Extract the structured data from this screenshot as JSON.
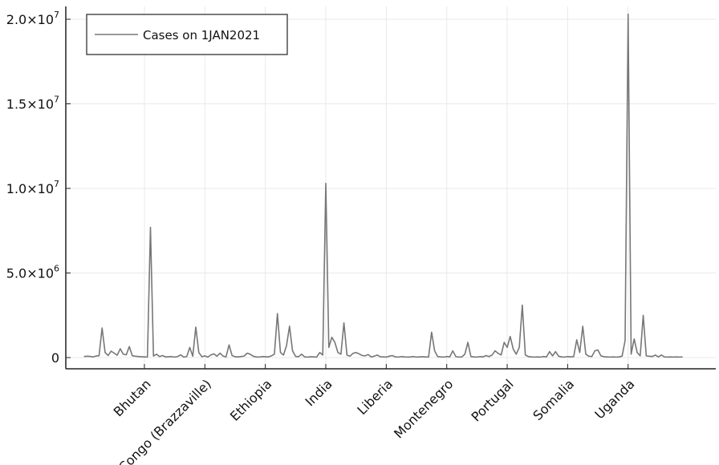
{
  "chart_data": {
    "type": "line",
    "title": "",
    "xlabel": "",
    "ylabel": "",
    "legend": {
      "position": "top-left",
      "entries": [
        "Cases on 1JAN2021"
      ]
    },
    "grid": true,
    "ylim": [
      0,
      20000000
    ],
    "y_ticks": [
      {
        "value": 0,
        "label": "0",
        "exp": ""
      },
      {
        "value": 5000000,
        "label": "5.0×10",
        "exp": "6"
      },
      {
        "value": 10000000,
        "label": "1.0×10",
        "exp": "7"
      },
      {
        "value": 15000000,
        "label": "1.5×10",
        "exp": "7"
      },
      {
        "value": 20000000,
        "label": "2.0×10",
        "exp": "7"
      }
    ],
    "xlim": [
      1,
      199
    ],
    "x_ticks": [
      {
        "index": 21,
        "label": "Bhutan"
      },
      {
        "index": 41,
        "label": "Congo (Brazzaville)"
      },
      {
        "index": 61,
        "label": "Ethiopia"
      },
      {
        "index": 81,
        "label": "India"
      },
      {
        "index": 101,
        "label": "Liberia"
      },
      {
        "index": 121,
        "label": "Montenegro"
      },
      {
        "index": 141,
        "label": "Portugal"
      },
      {
        "index": 161,
        "label": "Somalia"
      },
      {
        "index": 181,
        "label": "Uganda"
      }
    ],
    "series": [
      {
        "name": "Cases on 1JAN2021",
        "color": "#777777",
        "points": [
          [
            1,
            60000
          ],
          [
            2,
            80000
          ],
          [
            3,
            70000
          ],
          [
            4,
            40000
          ],
          [
            5,
            90000
          ],
          [
            6,
            110000
          ],
          [
            7,
            1750000
          ],
          [
            8,
            300000
          ],
          [
            9,
            120000
          ],
          [
            10,
            380000
          ],
          [
            11,
            260000
          ],
          [
            12,
            140000
          ],
          [
            13,
            520000
          ],
          [
            14,
            200000
          ],
          [
            15,
            160000
          ],
          [
            16,
            650000
          ],
          [
            17,
            110000
          ],
          [
            18,
            80000
          ],
          [
            19,
            60000
          ],
          [
            20,
            50000
          ],
          [
            21,
            40000
          ],
          [
            22,
            30000
          ],
          [
            23,
            7700000
          ],
          [
            24,
            90000
          ],
          [
            25,
            200000
          ],
          [
            26,
            60000
          ],
          [
            27,
            120000
          ],
          [
            28,
            40000
          ],
          [
            29,
            50000
          ],
          [
            30,
            60000
          ],
          [
            31,
            30000
          ],
          [
            32,
            60000
          ],
          [
            33,
            160000
          ],
          [
            34,
            30000
          ],
          [
            35,
            60000
          ],
          [
            36,
            600000
          ],
          [
            37,
            80000
          ],
          [
            38,
            1800000
          ],
          [
            39,
            300000
          ],
          [
            40,
            50000
          ],
          [
            41,
            100000
          ],
          [
            42,
            30000
          ],
          [
            43,
            160000
          ],
          [
            44,
            220000
          ],
          [
            45,
            80000
          ],
          [
            46,
            260000
          ],
          [
            47,
            90000
          ],
          [
            48,
            40000
          ],
          [
            49,
            750000
          ],
          [
            50,
            120000
          ],
          [
            51,
            50000
          ],
          [
            52,
            40000
          ],
          [
            53,
            60000
          ],
          [
            54,
            90000
          ],
          [
            55,
            260000
          ],
          [
            56,
            200000
          ],
          [
            57,
            80000
          ],
          [
            58,
            40000
          ],
          [
            59,
            30000
          ],
          [
            60,
            60000
          ],
          [
            61,
            50000
          ],
          [
            62,
            40000
          ],
          [
            63,
            100000
          ],
          [
            64,
            200000
          ],
          [
            65,
            2600000
          ],
          [
            66,
            300000
          ],
          [
            67,
            150000
          ],
          [
            68,
            700000
          ],
          [
            69,
            1850000
          ],
          [
            70,
            400000
          ],
          [
            71,
            70000
          ],
          [
            72,
            50000
          ],
          [
            73,
            200000
          ],
          [
            74,
            40000
          ],
          [
            75,
            30000
          ],
          [
            76,
            50000
          ],
          [
            77,
            40000
          ],
          [
            78,
            30000
          ],
          [
            79,
            300000
          ],
          [
            80,
            150000
          ],
          [
            81,
            10300000
          ],
          [
            82,
            600000
          ],
          [
            83,
            1200000
          ],
          [
            84,
            900000
          ],
          [
            85,
            300000
          ],
          [
            86,
            200000
          ],
          [
            87,
            2050000
          ],
          [
            88,
            150000
          ],
          [
            89,
            80000
          ],
          [
            90,
            250000
          ],
          [
            91,
            300000
          ],
          [
            92,
            220000
          ],
          [
            93,
            120000
          ],
          [
            94,
            100000
          ],
          [
            95,
            180000
          ],
          [
            96,
            40000
          ],
          [
            97,
            80000
          ],
          [
            98,
            150000
          ],
          [
            99,
            50000
          ],
          [
            100,
            40000
          ],
          [
            101,
            30000
          ],
          [
            102,
            80000
          ],
          [
            103,
            120000
          ],
          [
            104,
            40000
          ],
          [
            105,
            30000
          ],
          [
            106,
            60000
          ],
          [
            107,
            40000
          ],
          [
            108,
            30000
          ],
          [
            109,
            40000
          ],
          [
            110,
            60000
          ],
          [
            111,
            30000
          ],
          [
            112,
            40000
          ],
          [
            113,
            50000
          ],
          [
            114,
            40000
          ],
          [
            115,
            30000
          ],
          [
            116,
            1500000
          ],
          [
            117,
            400000
          ],
          [
            118,
            60000
          ],
          [
            119,
            40000
          ],
          [
            120,
            30000
          ],
          [
            121,
            60000
          ],
          [
            122,
            40000
          ],
          [
            123,
            400000
          ],
          [
            124,
            60000
          ],
          [
            125,
            30000
          ],
          [
            126,
            40000
          ],
          [
            127,
            200000
          ],
          [
            128,
            900000
          ],
          [
            129,
            60000
          ],
          [
            130,
            40000
          ],
          [
            131,
            30000
          ],
          [
            132,
            60000
          ],
          [
            133,
            40000
          ],
          [
            134,
            120000
          ],
          [
            135,
            60000
          ],
          [
            136,
            150000
          ],
          [
            137,
            400000
          ],
          [
            138,
            250000
          ],
          [
            139,
            150000
          ],
          [
            140,
            900000
          ],
          [
            141,
            600000
          ],
          [
            142,
            1250000
          ],
          [
            143,
            500000
          ],
          [
            144,
            200000
          ],
          [
            145,
            600000
          ],
          [
            146,
            3100000
          ],
          [
            147,
            150000
          ],
          [
            148,
            60000
          ],
          [
            149,
            40000
          ],
          [
            150,
            30000
          ],
          [
            151,
            40000
          ],
          [
            152,
            30000
          ],
          [
            153,
            60000
          ],
          [
            154,
            40000
          ],
          [
            155,
            350000
          ],
          [
            156,
            100000
          ],
          [
            157,
            350000
          ],
          [
            158,
            80000
          ],
          [
            159,
            40000
          ],
          [
            160,
            30000
          ],
          [
            161,
            60000
          ],
          [
            162,
            40000
          ],
          [
            163,
            60000
          ],
          [
            164,
            1050000
          ],
          [
            165,
            300000
          ],
          [
            166,
            1850000
          ],
          [
            167,
            200000
          ],
          [
            168,
            80000
          ],
          [
            169,
            60000
          ],
          [
            170,
            400000
          ],
          [
            171,
            450000
          ],
          [
            172,
            100000
          ],
          [
            173,
            50000
          ],
          [
            174,
            40000
          ],
          [
            175,
            30000
          ],
          [
            176,
            40000
          ],
          [
            177,
            30000
          ],
          [
            178,
            40000
          ],
          [
            179,
            80000
          ],
          [
            180,
            1000000
          ],
          [
            181,
            20300000
          ],
          [
            182,
            200000
          ],
          [
            183,
            1100000
          ],
          [
            184,
            300000
          ],
          [
            185,
            100000
          ],
          [
            186,
            2500000
          ],
          [
            187,
            100000
          ],
          [
            188,
            80000
          ],
          [
            189,
            60000
          ],
          [
            190,
            150000
          ],
          [
            191,
            40000
          ],
          [
            192,
            150000
          ],
          [
            193,
            40000
          ],
          [
            194,
            30000
          ],
          [
            195,
            40000
          ],
          [
            196,
            30000
          ],
          [
            197,
            40000
          ],
          [
            198,
            30000
          ],
          [
            199,
            40000
          ]
        ]
      }
    ]
  }
}
